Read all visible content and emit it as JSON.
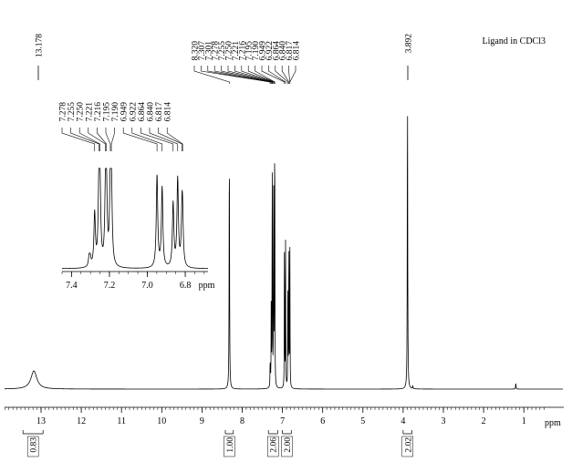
{
  "chart_data": {
    "type": "line",
    "title": "Ligand in CDCl3",
    "xlabel": "ppm",
    "x_axis": {
      "min": 0.5,
      "max": 13.9,
      "reversed": true,
      "ticks": [
        13,
        12,
        11,
        10,
        9,
        8,
        7,
        6,
        5,
        4,
        3,
        2,
        1
      ],
      "tick_labels": [
        "13",
        "12",
        "11",
        "10",
        "9",
        "8",
        "7",
        "6",
        "5",
        "4",
        "3",
        "2",
        "1"
      ]
    },
    "peaks": [
      {
        "ppm": 13.178,
        "height": 0.06,
        "width": 0.09
      },
      {
        "ppm": 8.32,
        "height": 0.82,
        "width": 0.006
      },
      {
        "ppm": 7.307,
        "height": 0.06,
        "width": 0.004
      },
      {
        "ppm": 7.301,
        "height": 0.05,
        "width": 0.004
      },
      {
        "ppm": 7.278,
        "height": 0.33,
        "width": 0.004
      },
      {
        "ppm": 7.255,
        "height": 0.52,
        "width": 0.004
      },
      {
        "ppm": 7.25,
        "height": 0.45,
        "width": 0.004
      },
      {
        "ppm": 7.221,
        "height": 0.38,
        "width": 0.004
      },
      {
        "ppm": 7.216,
        "height": 0.48,
        "width": 0.004
      },
      {
        "ppm": 7.195,
        "height": 0.52,
        "width": 0.004
      },
      {
        "ppm": 7.19,
        "height": 0.5,
        "width": 0.004
      },
      {
        "ppm": 6.949,
        "height": 0.58,
        "width": 0.004
      },
      {
        "ppm": 6.922,
        "height": 0.5,
        "width": 0.004
      },
      {
        "ppm": 6.864,
        "height": 0.4,
        "width": 0.004
      },
      {
        "ppm": 6.84,
        "height": 0.55,
        "width": 0.004
      },
      {
        "ppm": 6.817,
        "height": 0.3,
        "width": 0.004
      },
      {
        "ppm": 6.814,
        "height": 0.22,
        "width": 0.004
      },
      {
        "ppm": 3.892,
        "height": 1.0,
        "width": 0.006
      },
      {
        "ppm": 3.76,
        "height": 0.01,
        "width": 0.006
      },
      {
        "ppm": 1.2,
        "height": 0.02,
        "width": 0.006
      }
    ],
    "peak_labels_group1": [
      "8.320",
      "7.307",
      "7.301",
      "7.278",
      "7.255",
      "7.250",
      "7.221",
      "7.216",
      "7.195",
      "7.190",
      "6.949",
      "6.922",
      "6.864",
      "6.840",
      "6.817",
      "6.814"
    ],
    "peak_label_single_1": "13.178",
    "peak_label_single_2": "3.892",
    "integrals": [
      {
        "label": "0.83",
        "from": 13.45,
        "to": 12.95
      },
      {
        "label": "1.00",
        "from": 8.42,
        "to": 8.22
      },
      {
        "label": "2.06",
        "from": 7.35,
        "to": 7.12
      },
      {
        "label": "2.00",
        "from": 7.0,
        "to": 6.78
      },
      {
        "label": "2.02",
        "from": 4.0,
        "to": 3.78
      }
    ],
    "inset": {
      "x_range": [
        7.45,
        6.68
      ],
      "ticks": [
        7.4,
        7.2,
        7.0,
        6.8
      ],
      "tick_labels": [
        "7.4",
        "7.2",
        "7.0",
        "6.8"
      ],
      "xlabel": "ppm",
      "labels": [
        "7.278",
        "7.255",
        "7.250",
        "7.221",
        "7.216",
        "7.195",
        "7.190",
        "6.949",
        "6.922",
        "6.864",
        "6.840",
        "6.817",
        "6.814"
      ]
    }
  }
}
